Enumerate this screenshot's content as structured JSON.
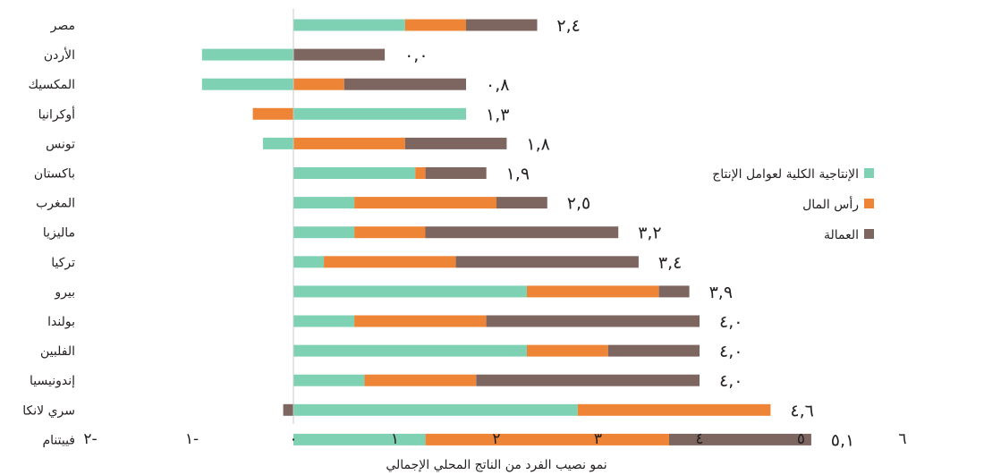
{
  "chart_data": {
    "type": "bar",
    "orientation": "horizontal",
    "stacked": true,
    "xlabel": "نمو نصيب الفرد من الناتج المحلي الإجمالي",
    "xlim": [
      -2,
      6
    ],
    "xticks": [
      "٢-",
      "١-",
      "٠",
      "١",
      "٢",
      "٣",
      "٤",
      "٥",
      "٦"
    ],
    "xtick_values": [
      -2,
      -1,
      0,
      1,
      2,
      3,
      4,
      5,
      6
    ],
    "grid": false,
    "legend_position": "right",
    "categories": [
      "مصر",
      "الأردن",
      "المكسيك",
      "أوكرانيا",
      "تونس",
      "باكستان",
      "المغرب",
      "ماليزيا",
      "تركيا",
      "بيرو",
      "بولندا",
      "الفلبين",
      "إندونيسيا",
      "سري لانكا",
      "فييتنام"
    ],
    "series": [
      {
        "name": "الإنتاجية الكلية لعوامل الإنتاج",
        "color": "#7fd1b4",
        "values": [
          1.1,
          -0.9,
          -0.9,
          1.7,
          -0.3,
          1.2,
          0.6,
          0.6,
          0.3,
          2.3,
          0.6,
          2.3,
          0.7,
          2.8,
          1.3
        ]
      },
      {
        "name": "رأس المال",
        "color": "#ee8435",
        "values": [
          0.6,
          0.0,
          0.5,
          -0.4,
          1.1,
          0.1,
          1.4,
          0.7,
          1.3,
          1.3,
          1.3,
          0.8,
          1.1,
          1.9,
          2.4
        ]
      },
      {
        "name": "العمالة",
        "color": "#7d6560",
        "values": [
          0.7,
          0.9,
          1.2,
          0.0,
          1.0,
          0.6,
          0.5,
          1.9,
          1.8,
          0.3,
          2.1,
          0.9,
          2.2,
          -0.1,
          1.4
        ]
      }
    ],
    "totals": [
      "٢,٤",
      "٠,٠",
      "٠,٨",
      "١,٣",
      "١,٨",
      "١,٩",
      "٢,٥",
      "٣,٢",
      "٣,٤",
      "٣,٩",
      "٤,٠",
      "٤,٠",
      "٤,٠",
      "٤,٦",
      "٥,١"
    ]
  }
}
